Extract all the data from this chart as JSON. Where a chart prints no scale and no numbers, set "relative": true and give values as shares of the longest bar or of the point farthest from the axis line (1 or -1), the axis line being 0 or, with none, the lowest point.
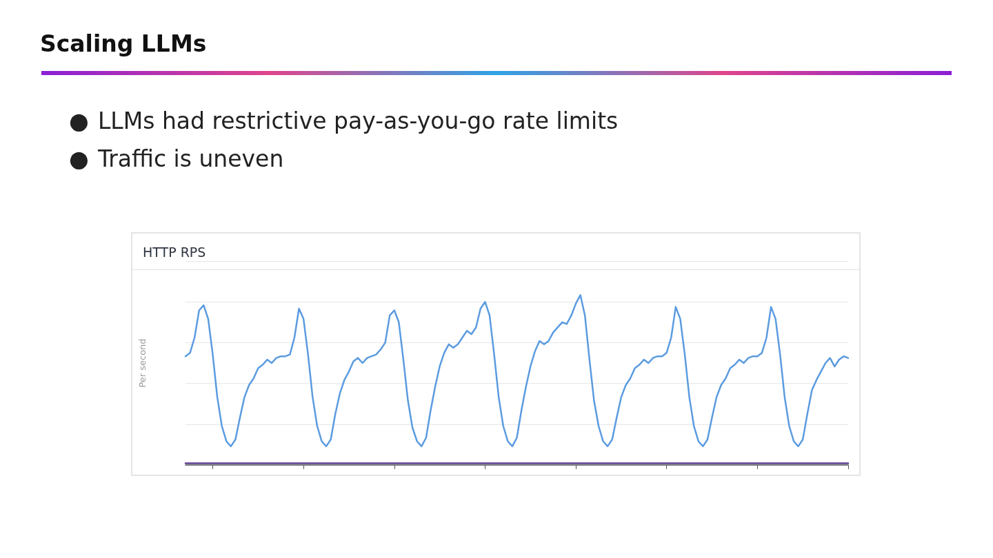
{
  "chart_data": {
    "type": "line",
    "title": "HTTP RPS",
    "ylabel": "Per second",
    "relative": true,
    "grid": "y",
    "line_style": "solid",
    "annotations": [
      "Scaling LLMs",
      "●\tLLMs had restrictive pay-as-you-go rate limits",
      "●\tTraffic is uneven"
    ],
    "categories": [
      null,
      null,
      null,
      null,
      null,
      null,
      null,
      null,
      null,
      null,
      null,
      null,
      null,
      null,
      null,
      null,
      null,
      null,
      null,
      null,
      null,
      null,
      null,
      null,
      null,
      null,
      null,
      null,
      null,
      null,
      null,
      null,
      null,
      null,
      null,
      null,
      null,
      null,
      null,
      null,
      null,
      null,
      null,
      null,
      null,
      null,
      null,
      null,
      null,
      null,
      null,
      null,
      null,
      null,
      null,
      null,
      null,
      null,
      null,
      null,
      null,
      null,
      null,
      null,
      null,
      null,
      null,
      null,
      null,
      null,
      null,
      null,
      null,
      null,
      null,
      null,
      null,
      null,
      null,
      null,
      null,
      null,
      null,
      null,
      null,
      null,
      null,
      null,
      null,
      null,
      null,
      null,
      null,
      null,
      null,
      null,
      null,
      null,
      null,
      null,
      null,
      null,
      null,
      null,
      null,
      null,
      null,
      null,
      null,
      null,
      null,
      null,
      null,
      null,
      null,
      null,
      null,
      null,
      null,
      null,
      null,
      null,
      null,
      null,
      null,
      null,
      null,
      null,
      null,
      null,
      null,
      null,
      null,
      null,
      null,
      null,
      null,
      null,
      null,
      null,
      null,
      null,
      null,
      null,
      null,
      null,
      null
    ],
    "series": [
      {
        "color": "#5b9be0",
        "values": [
          0.64,
          0.66,
          0.75,
          0.91,
          0.94,
          0.86,
          0.65,
          0.4,
          0.23,
          0.14,
          0.11,
          0.15,
          0.28,
          0.4,
          0.47,
          0.51,
          0.57,
          0.59,
          0.62,
          0.6,
          0.63,
          0.64,
          0.64,
          0.65,
          0.75,
          0.92,
          0.86,
          0.65,
          0.4,
          0.23,
          0.14,
          0.11,
          0.15,
          0.3,
          0.42,
          0.5,
          0.55,
          0.61,
          0.63,
          0.6,
          0.63,
          0.64,
          0.65,
          0.68,
          0.72,
          0.88,
          0.91,
          0.84,
          0.62,
          0.38,
          0.22,
          0.14,
          0.11,
          0.16,
          0.32,
          0.46,
          0.58,
          0.66,
          0.71,
          0.69,
          0.71,
          0.75,
          0.79,
          0.77,
          0.81,
          0.92,
          0.96,
          0.88,
          0.65,
          0.4,
          0.23,
          0.14,
          0.11,
          0.16,
          0.32,
          0.46,
          0.58,
          0.67,
          0.73,
          0.71,
          0.73,
          0.78,
          0.81,
          0.84,
          0.83,
          0.88,
          0.95,
          1.0,
          0.88,
          0.62,
          0.38,
          0.23,
          0.14,
          0.11,
          0.15,
          0.28,
          0.4,
          0.47,
          0.51,
          0.57,
          0.59,
          0.62,
          0.6,
          0.63,
          0.64,
          0.64,
          0.66,
          0.75,
          0.93,
          0.86,
          0.65,
          0.4,
          0.23,
          0.14,
          0.11,
          0.15,
          0.28,
          0.4,
          0.47,
          0.51,
          0.57,
          0.59,
          0.62,
          0.6,
          0.63,
          0.64,
          0.64,
          0.66,
          0.75,
          0.93,
          0.86,
          0.65,
          0.4,
          0.23,
          0.14,
          0.11,
          0.15,
          0.3,
          0.44,
          0.5,
          0.55,
          0.6,
          0.63,
          0.58,
          0.62,
          0.64,
          0.63
        ]
      },
      {
        "color": "#5e3f8f",
        "values": [
          0.01,
          0.01,
          0.01,
          0.01,
          0.01,
          0.01,
          0.01,
          0.01,
          0.01,
          0.01,
          0.01,
          0.01,
          0.01,
          0.01,
          0.01,
          0.01,
          0.01,
          0.01,
          0.01,
          0.01,
          0.01,
          0.01,
          0.01,
          0.01,
          0.01,
          0.01,
          0.01,
          0.01,
          0.01,
          0.01,
          0.01,
          0.01,
          0.01,
          0.01,
          0.01,
          0.01,
          0.01,
          0.01,
          0.01,
          0.01,
          0.01,
          0.01,
          0.01,
          0.01,
          0.01,
          0.01,
          0.01,
          0.01,
          0.01,
          0.01,
          0.01,
          0.01,
          0.01,
          0.01,
          0.01,
          0.01,
          0.01,
          0.01,
          0.01,
          0.01,
          0.01,
          0.01,
          0.01,
          0.01,
          0.01,
          0.01,
          0.01,
          0.01,
          0.01,
          0.01,
          0.01,
          0.01,
          0.01,
          0.01,
          0.01,
          0.01,
          0.01,
          0.01,
          0.01,
          0.01,
          0.01,
          0.01,
          0.01,
          0.01,
          0.01,
          0.01,
          0.01,
          0.01,
          0.01,
          0.01,
          0.01,
          0.01,
          0.01,
          0.01,
          0.01,
          0.01,
          0.01,
          0.01,
          0.01,
          0.01,
          0.01,
          0.01,
          0.01,
          0.01,
          0.01,
          0.01,
          0.01,
          0.01,
          0.01,
          0.01,
          0.01,
          0.01,
          0.01,
          0.01,
          0.01,
          0.01,
          0.01,
          0.01,
          0.01,
          0.01,
          0.01,
          0.01,
          0.01,
          0.01,
          0.01,
          0.01,
          0.01,
          0.01,
          0.01,
          0.01,
          0.01,
          0.01,
          0.01,
          0.01,
          0.01,
          0.01,
          0.01,
          0.01,
          0.01,
          0.01,
          0.01,
          0.01,
          0.01,
          0.01,
          0.01,
          0.01,
          0.01
        ]
      }
    ]
  }
}
